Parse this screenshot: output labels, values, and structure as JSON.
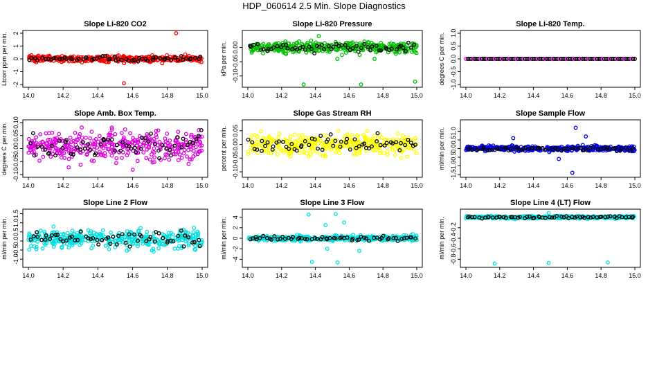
{
  "title": "HDP_060614  2.5 Min. Slope Diagnostics",
  "chart_data": [
    {
      "type": "scatter",
      "title": "Slope Li-820 CO2",
      "ylabel": "Ltcorr ppm per min.",
      "color": "#ff0000",
      "xlim": [
        14.0,
        15.0
      ],
      "ylim": [
        -2,
        2
      ],
      "xticks": [
        "14.0",
        "14.2",
        "14.4",
        "14.6",
        "14.8",
        "15.0"
      ],
      "yticks": [
        -2,
        -1,
        0,
        1,
        2
      ],
      "ytick_labels": [
        "-2",
        "-1",
        "0",
        "1",
        "2"
      ],
      "center": 0,
      "spread": 0.2,
      "outliers": [
        [
          14.85,
          2.0
        ],
        [
          14.55,
          -1.9
        ],
        [
          14.77,
          -0.35
        ]
      ],
      "constant": false
    },
    {
      "type": "scatter",
      "title": "Slope Li-820 Pressure",
      "ylabel": "kPa per min.",
      "color": "#00c000",
      "xlim": [
        14.0,
        15.0
      ],
      "ylim": [
        -0.13,
        0.05
      ],
      "xticks": [
        "14.0",
        "14.2",
        "14.4",
        "14.6",
        "14.8",
        "15.0"
      ],
      "yticks": [
        -0.1,
        -0.05,
        0
      ],
      "ytick_labels": [
        "-0.10",
        "-0.05",
        "0.00"
      ],
      "center": 0,
      "spread": 0.015,
      "outliers": [
        [
          14.33,
          -0.13
        ],
        [
          14.67,
          -0.13
        ],
        [
          14.99,
          -0.12
        ],
        [
          14.53,
          -0.04
        ],
        [
          14.75,
          -0.04
        ],
        [
          14.42,
          0.04
        ]
      ],
      "constant": false
    },
    {
      "type": "scatter",
      "title": "Slope Li-820 Temp.",
      "ylabel": "degrees C per min.",
      "color": "#ff00ff",
      "xlim": [
        14.0,
        15.0
      ],
      "ylim": [
        -1.0,
        1.0
      ],
      "xticks": [
        "14.0",
        "14.2",
        "14.4",
        "14.6",
        "14.8",
        "15.0"
      ],
      "yticks": [
        -1,
        -0.5,
        0,
        0.5,
        1
      ],
      "ytick_labels": [
        "-1.0",
        "-0.5",
        "0.0",
        "0.5",
        "1.0"
      ],
      "center": 0,
      "spread": 0,
      "outliers": [],
      "constant": true
    },
    {
      "type": "scatter",
      "title": "Slope Amb. Box Temp.",
      "ylabel": "degrees C per min.",
      "color": "#e000e0",
      "xlim": [
        14.0,
        15.0
      ],
      "ylim": [
        -0.1,
        0.1
      ],
      "xticks": [
        "14.0",
        "14.2",
        "14.4",
        "14.6",
        "14.8",
        "15.0"
      ],
      "yticks": [
        -0.1,
        -0.05,
        0,
        0.05,
        0.1
      ],
      "ytick_labels": [
        "-0.10",
        "-0.05",
        "0.00",
        "0.05",
        "0.10"
      ],
      "center": 0.01,
      "spread": 0.045,
      "outliers": [],
      "constant": false
    },
    {
      "type": "scatter",
      "title": "Slope Gas Stream RH",
      "ylabel": "percent per min.",
      "color": "#ffff00",
      "xlim": [
        14.0,
        15.0
      ],
      "ylim": [
        -0.11,
        0.08
      ],
      "xticks": [
        "14.0",
        "14.2",
        "14.4",
        "14.6",
        "14.8",
        "15.0"
      ],
      "yticks": [
        -0.1,
        -0.05,
        0,
        0.05
      ],
      "ytick_labels": [
        "-0.10",
        "-0.05",
        "0.00",
        "0.05"
      ],
      "center": 0,
      "spread": 0.03,
      "outliers": [],
      "constant": false
    },
    {
      "type": "scatter",
      "title": "Slope Sample Flow",
      "ylabel": "ml/min per min.",
      "color": "#0000e0",
      "xlim": [
        14.0,
        15.0
      ],
      "ylim": [
        -1.5,
        1.5
      ],
      "xticks": [
        "14.0",
        "14.2",
        "14.4",
        "14.6",
        "14.8",
        "15.0"
      ],
      "yticks": [
        -1.5,
        -1.0,
        -0.5,
        0,
        0.5,
        1.0
      ],
      "ytick_labels": [
        "-1.5",
        "-1.0",
        "-0.5",
        "0.0",
        "0.5",
        "1.0"
      ],
      "center": 0,
      "spread": 0.12,
      "outliers": [
        [
          14.65,
          1.2
        ],
        [
          14.63,
          -1.4
        ],
        [
          14.71,
          0.7
        ],
        [
          14.55,
          -0.6
        ],
        [
          14.28,
          0.6
        ]
      ],
      "constant": false
    },
    {
      "type": "scatter",
      "title": "Slope Line 2 Flow",
      "ylabel": "ml/min per min.",
      "color": "#00e0e0",
      "xlim": [
        14.0,
        15.0
      ],
      "ylim": [
        -1.3,
        1.6
      ],
      "xticks": [
        "14.0",
        "14.2",
        "14.4",
        "14.6",
        "14.8",
        "15.0"
      ],
      "yticks": [
        -1.0,
        -0.5,
        0,
        0.5,
        1.0,
        1.5
      ],
      "ytick_labels": [
        "-1.0",
        "-0.5",
        "0.0",
        "0.5",
        "1.0",
        "1.5"
      ],
      "center": 0.1,
      "spread": 0.4,
      "outliers": [],
      "constant": false
    },
    {
      "type": "scatter",
      "title": "Slope Line 3 Flow",
      "ylabel": "ml/min per min.",
      "color": "#00e0e0",
      "xlim": [
        14.0,
        15.0
      ],
      "ylim": [
        -5,
        5
      ],
      "xticks": [
        "14.0",
        "14.2",
        "14.4",
        "14.6",
        "14.8",
        "15.0"
      ],
      "yticks": [
        -4,
        -2,
        0,
        2,
        4
      ],
      "ytick_labels": [
        "-4",
        "-2",
        "0",
        "2",
        "4"
      ],
      "center": 0,
      "spread": 0.4,
      "outliers": [
        [
          14.36,
          4.5
        ],
        [
          14.52,
          4.6
        ],
        [
          14.53,
          -4.6
        ],
        [
          14.38,
          -4.5
        ],
        [
          14.46,
          2.5
        ],
        [
          14.57,
          3.0
        ],
        [
          14.66,
          -2.4
        ],
        [
          14.47,
          -2.0
        ]
      ],
      "constant": false
    },
    {
      "type": "scatter",
      "title": "Slope Line 4 (LT) Flow",
      "ylabel": "ml/min per min.",
      "color": "#00e0e0",
      "xlim": [
        14.0,
        15.0
      ],
      "ylim": [
        -0.9,
        0.1
      ],
      "xticks": [
        "14.0",
        "14.2",
        "14.4",
        "14.6",
        "14.8",
        "15.0"
      ],
      "yticks": [
        -0.8,
        -0.6,
        -0.4,
        -0.2
      ],
      "ytick_labels": [
        "-0.8",
        "-0.6",
        "-0.4",
        "-0.2"
      ],
      "center": 0,
      "spread": 0.02,
      "outliers": [
        [
          14.17,
          -0.88
        ],
        [
          14.49,
          -0.87
        ],
        [
          14.84,
          -0.86
        ],
        [
          14.49,
          0.08
        ]
      ],
      "constant": false
    }
  ]
}
